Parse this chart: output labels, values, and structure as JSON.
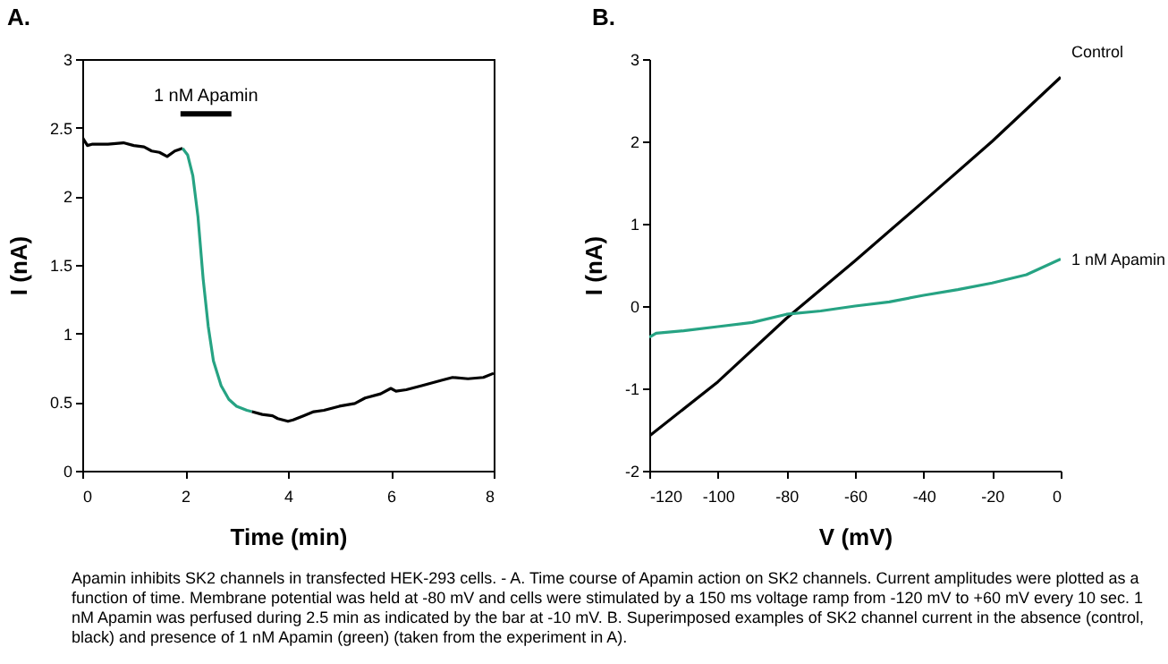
{
  "chart_data": [
    {
      "type": "line",
      "title": "A.",
      "xlabel": "Time (min)",
      "ylabel": "I (nA)",
      "xlim": [
        0,
        8
      ],
      "ylim": [
        0,
        3
      ],
      "xticks": [
        0,
        2,
        4,
        6,
        8
      ],
      "yticks": [
        0,
        0.5,
        1,
        1.5,
        2,
        2.5,
        3
      ],
      "grid": false,
      "legend": false,
      "series": [
        {
          "color": "#000000",
          "x": [
            0,
            0.1,
            0.2,
            0.5,
            0.8,
            1.0,
            1.2,
            1.35,
            1.5,
            1.65,
            1.8,
            1.95
          ],
          "values": [
            2.43,
            2.37,
            2.38,
            2.38,
            2.39,
            2.37,
            2.36,
            2.33,
            2.32,
            2.29,
            2.33,
            2.35
          ]
        },
        {
          "color": "#26a383",
          "x": [
            1.95,
            2.05,
            2.15,
            2.25,
            2.35,
            2.45,
            2.55,
            2.7,
            2.85,
            3.0,
            3.2,
            3.3
          ],
          "values": [
            2.35,
            2.3,
            2.15,
            1.85,
            1.4,
            1.05,
            0.8,
            0.62,
            0.52,
            0.47,
            0.44,
            0.43
          ]
        },
        {
          "color": "#000000",
          "x": [
            3.3,
            3.5,
            3.7,
            3.8,
            4.0,
            4.1,
            4.3,
            4.5,
            4.7,
            5.0,
            5.3,
            5.5,
            5.8,
            6.0,
            6.1,
            6.3,
            6.6,
            7.0,
            7.2,
            7.5,
            7.8,
            8.0
          ],
          "values": [
            0.43,
            0.41,
            0.4,
            0.38,
            0.36,
            0.37,
            0.4,
            0.43,
            0.44,
            0.47,
            0.49,
            0.53,
            0.56,
            0.6,
            0.58,
            0.59,
            0.62,
            0.66,
            0.68,
            0.67,
            0.68,
            0.71
          ]
        },
        {
          "name": "1 nM Apamin",
          "color": "#000000",
          "x": [
            1.91,
            2.9
          ],
          "values": [
            2.6,
            2.6
          ]
        }
      ],
      "annotations": [
        "Apamin inhibits SK2 channels in transfected HEK-293 cells. - A. Time course of Apamin action on SK2 channels. Current amplitudes were plotted as a function of time. Membrane potential was held at -80 mV and cells were stimulated by a 150 ms voltage ramp from -120 mV to +60 mV every 10 sec. 1 nM Apamin was perfused during 2.5 min as indicated by the bar at -10 mV. B. Superimposed examples of SK2 channel current in the absence (control, black) and presence of 1 nM Apamin (green) (taken from the experiment in A)."
      ]
    },
    {
      "type": "line",
      "title": "B.",
      "xlabel": "V (mV)",
      "ylabel": "I (nA)",
      "xlim": [
        -120,
        0
      ],
      "ylim": [
        -2,
        3
      ],
      "xticks": [
        -120,
        -100,
        -80,
        -60,
        -40,
        -20,
        0
      ],
      "yticks": [
        -2,
        -1,
        0,
        1,
        2,
        3
      ],
      "grid": false,
      "legend": false,
      "series": [
        {
          "name": "Control",
          "color": "#000000",
          "x": [
            -120,
            -100,
            -80,
            -60,
            -40,
            -20,
            0
          ],
          "values": [
            -1.58,
            -0.92,
            -0.15,
            0.55,
            1.27,
            2.0,
            2.78
          ]
        },
        {
          "name": "1 nM Apamin",
          "color": "#26a383",
          "x": [
            -120,
            -118,
            -110,
            -100,
            -90,
            -80,
            -70,
            -60,
            -50,
            -40,
            -30,
            -20,
            -10,
            0
          ],
          "values": [
            -0.38,
            -0.33,
            -0.3,
            -0.25,
            -0.2,
            -0.1,
            -0.06,
            0.0,
            0.05,
            0.13,
            0.2,
            0.28,
            0.38,
            0.57
          ]
        }
      ]
    }
  ]
}
